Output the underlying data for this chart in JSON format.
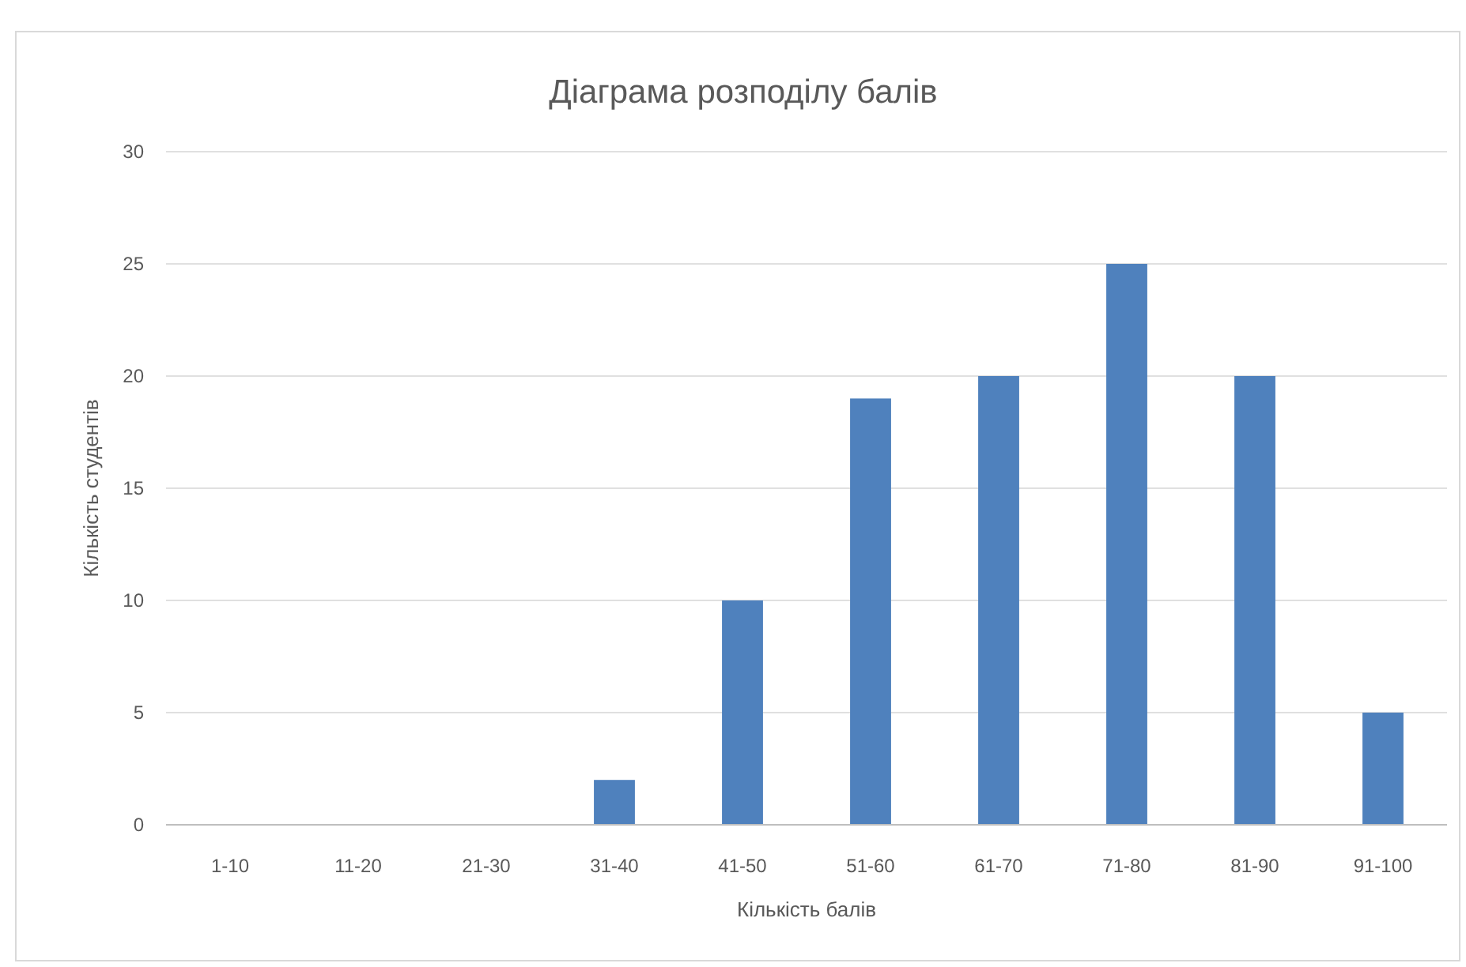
{
  "chart_data": {
    "type": "bar",
    "title": "Діаграма розподілу балів",
    "xlabel": "Кількість балів",
    "ylabel": "Кількість студентів",
    "categories": [
      "1-10",
      "11-20",
      "21-30",
      "31-40",
      "41-50",
      "51-60",
      "61-70",
      "71-80",
      "81-90",
      "91-100"
    ],
    "values": [
      0,
      0,
      0,
      2,
      10,
      19,
      20,
      25,
      20,
      5
    ],
    "color": "#4f81bd",
    "ylim": [
      0,
      30
    ],
    "yticks": [
      0,
      5,
      10,
      15,
      20,
      25,
      30
    ],
    "grid": "y"
  }
}
